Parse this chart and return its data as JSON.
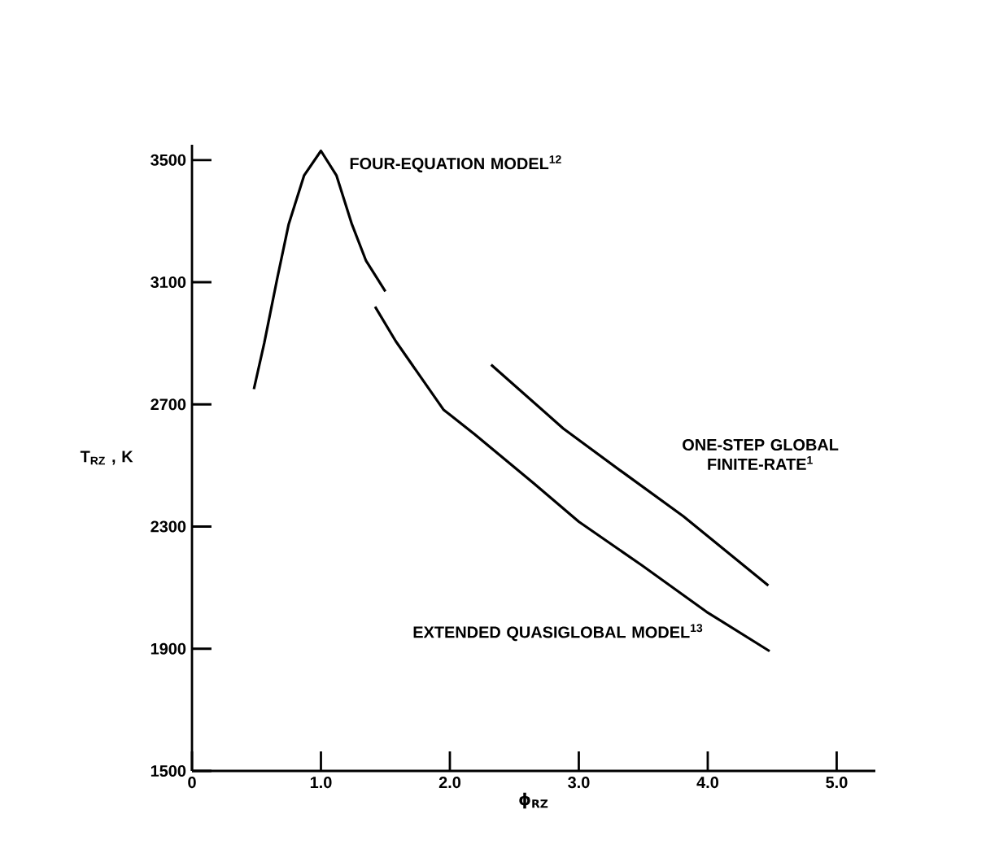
{
  "chart_data": {
    "type": "line",
    "xlabel": "ϕ$_{RZ}$",
    "ylabel": "T$_{RZ}$ , K",
    "xlim": [
      0,
      5.3
    ],
    "ylim": [
      1500,
      3550
    ],
    "xticks": [
      {
        "value": 0,
        "label": "0"
      },
      {
        "value": 1,
        "label": "1.0"
      },
      {
        "value": 2,
        "label": "2.0"
      },
      {
        "value": 3,
        "label": "3.0"
      },
      {
        "value": 4,
        "label": "4.0"
      },
      {
        "value": 5,
        "label": "5.0"
      }
    ],
    "yticks": [
      1500,
      1900,
      2300,
      2700,
      3100,
      3500
    ],
    "grid": false,
    "legend": false,
    "marker": "none",
    "line_style": "solid",
    "series": [
      {
        "name": "FOUR-EQUATION MODEL$^{12}$",
        "color": "#000000",
        "x": [
          0.48,
          0.56,
          0.66,
          0.75,
          0.87,
          1.0,
          1.12,
          1.24,
          1.35,
          1.5
        ],
        "values": [
          2750,
          2900,
          3110,
          3290,
          3450,
          3530,
          3450,
          3290,
          3170,
          3070
        ]
      },
      {
        "name": "EXTENDED QUASIGLOBAL MODEL$^{13}$",
        "color": "#000000",
        "x": [
          1.42,
          1.58,
          1.95,
          2.19,
          2.65,
          3.0,
          3.49,
          3.99,
          4.48
        ],
        "values": [
          3020,
          2907,
          2683,
          2603,
          2442,
          2316,
          2173,
          2021,
          1892
        ]
      },
      {
        "name": "ONE-STEP GLOBAL FINITE-RATE$^{1}$",
        "color": "#000000",
        "x": [
          2.32,
          2.88,
          3.34,
          3.81,
          4.47
        ],
        "values": [
          2830,
          2621,
          2478,
          2334,
          2107
        ]
      }
    ]
  }
}
